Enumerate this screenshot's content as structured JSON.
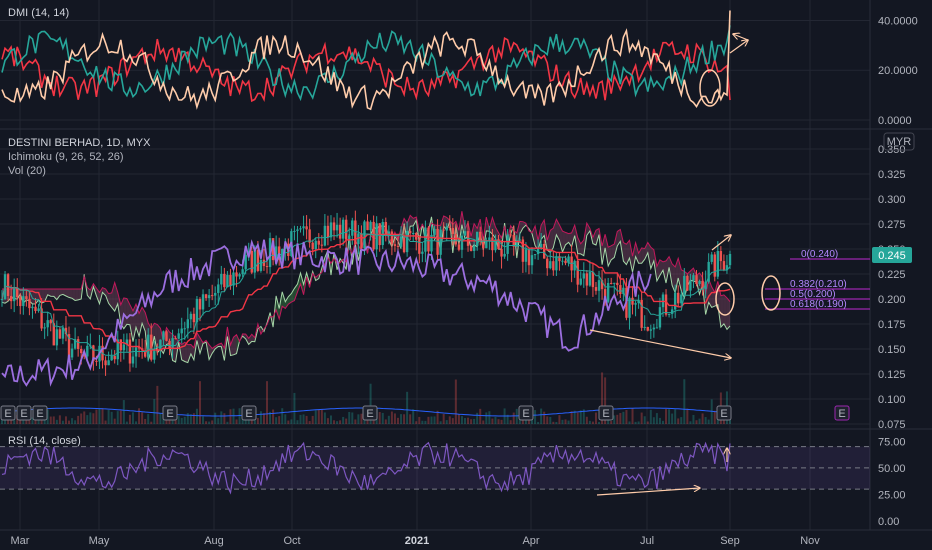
{
  "colors": {
    "bg": "#131722",
    "grid": "#232733",
    "up": "#26a69a",
    "down": "#ef5350",
    "dmi_plus": "#26a69a",
    "dmi_minus": "#f23645",
    "adx": "#ffccaa",
    "tenkan": "#7e57c2",
    "kijun": "#f23645",
    "chikou": "#9c6fe0",
    "span_a": "#a5d6a7",
    "span_b": "#c2185b",
    "cloud_bull": "#4caf5055",
    "cloud_bear": "#8a4a6a66",
    "rsi": "#7e57c2",
    "rsi_band": "#7e57c222",
    "fib": "#9c27b0",
    "annotation": "#ffccaa",
    "price_tag": "#26a69a"
  },
  "panes": {
    "dmi": {
      "title": "DMI (14, 14)",
      "ticks": [
        "40.0000",
        "20.0000",
        "0.0000"
      ]
    },
    "main": {
      "title": "DESTINI BERHAD, 1D, MYX",
      "indicators": [
        "Ichimoku (9, 26, 52, 26)",
        "Vol (20)"
      ],
      "currency": "MYR",
      "ticks": [
        "0.350",
        "0.325",
        "0.300",
        "0.275",
        "0.250",
        "0.225",
        "0.200",
        "0.175",
        "0.150",
        "0.125",
        "0.100",
        "0.075"
      ],
      "last_price": "0.245"
    },
    "rsi": {
      "title": "RSI (14, close)",
      "ticks": [
        "75.00",
        "50.00",
        "25.00",
        "0.00"
      ]
    }
  },
  "time_axis": [
    "Mar",
    "May",
    "Aug",
    "Oct",
    "2021",
    "Apr",
    "Jul",
    "Sep",
    "Nov"
  ],
  "fib_levels": [
    "0(0.240)",
    "0.382(0.210)",
    "0.5(0.200)",
    "0.618(0.190)"
  ],
  "earnings_marker": "E",
  "chart_data": {
    "type": "candlestick",
    "symbol": "DESTINI BERHAD",
    "interval": "1D",
    "exchange": "MYX",
    "ylim": [
      0.075,
      0.35
    ],
    "x": [
      "Mar",
      "May",
      "Aug",
      "Oct",
      "2021",
      "Apr",
      "Jul",
      "Sep"
    ],
    "close_path": [
      0.215,
      0.14,
      0.155,
      0.235,
      0.27,
      0.26,
      0.255,
      0.235,
      0.18,
      0.245
    ],
    "last_close": 0.245,
    "fibonacci": [
      {
        "level": 0,
        "price": 0.24
      },
      {
        "level": 0.382,
        "price": 0.21
      },
      {
        "level": 0.5,
        "price": 0.2
      },
      {
        "level": 0.618,
        "price": 0.19
      }
    ],
    "rsi": {
      "levels": [
        70,
        50,
        30
      ],
      "ylim": [
        0,
        80
      ]
    },
    "dmi": {
      "ylim": [
        0,
        45
      ]
    }
  }
}
